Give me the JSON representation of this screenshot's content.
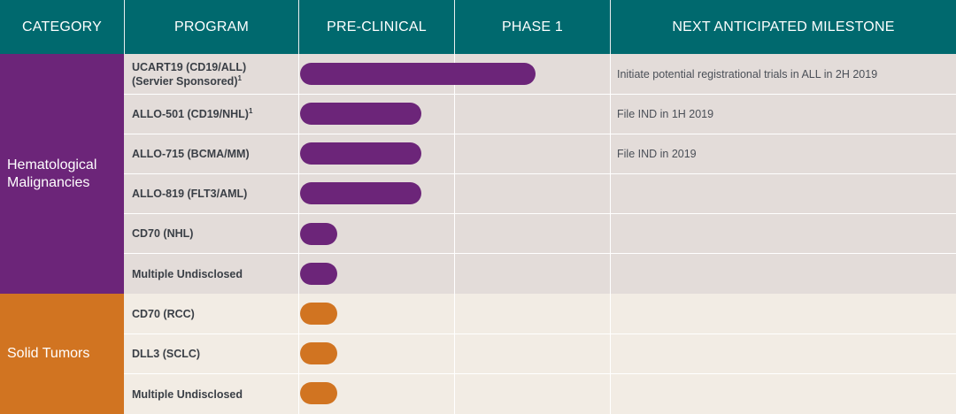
{
  "header": {
    "category": "CATEGORY",
    "program": "PROGRAM",
    "preclinical": "PRE-CLINICAL",
    "phase1": "PHASE 1",
    "milestone": "NEXT ANTICIPATED MILESTONE"
  },
  "categories": {
    "heme_line1": "Hematological",
    "heme_line2": "Malignancies",
    "solid": "Solid Tumors"
  },
  "rows": [
    {
      "program_line1": "UCART19 (CD19/ALL)",
      "program_line2": "(Servier Sponsored)",
      "footnote": "1",
      "milestone": "Initiate potential registrational trials in ALL in 2H 2019",
      "progress_stage": "Phase 1 (partial)"
    },
    {
      "program_line1": "ALLO-501 (CD19/NHL)",
      "program_line2": "",
      "footnote": "1",
      "milestone": "File IND in 1H 2019",
      "progress_stage": "Pre-clinical (late)"
    },
    {
      "program_line1": "ALLO-715 (BCMA/MM)",
      "program_line2": "",
      "footnote": "",
      "milestone": "File IND in 2019",
      "progress_stage": "Pre-clinical (late)"
    },
    {
      "program_line1": "ALLO-819 (FLT3/AML)",
      "program_line2": "",
      "footnote": "",
      "milestone": "",
      "progress_stage": "Pre-clinical (late)"
    },
    {
      "program_line1": "CD70 (NHL)",
      "program_line2": "",
      "footnote": "",
      "milestone": "",
      "progress_stage": "Pre-clinical (early)"
    },
    {
      "program_line1": "Multiple Undisclosed",
      "program_line2": "",
      "footnote": "",
      "milestone": "",
      "progress_stage": "Pre-clinical (early)"
    },
    {
      "program_line1": "CD70 (RCC)",
      "program_line2": "",
      "footnote": "",
      "milestone": "",
      "progress_stage": "Pre-clinical (early)"
    },
    {
      "program_line1": "DLL3 (SCLC)",
      "program_line2": "",
      "footnote": "",
      "milestone": "",
      "progress_stage": "Pre-clinical (early)"
    },
    {
      "program_line1": "Multiple Undisclosed",
      "program_line2": "",
      "footnote": "",
      "milestone": "",
      "progress_stage": "Pre-clinical (early)"
    }
  ],
  "colors": {
    "header": "#00696e",
    "hematological": "#6c2579",
    "solid_tumors": "#d17421",
    "row_heme_bg": "#e3dcd9",
    "row_solid_bg": "#f2ece4"
  }
}
